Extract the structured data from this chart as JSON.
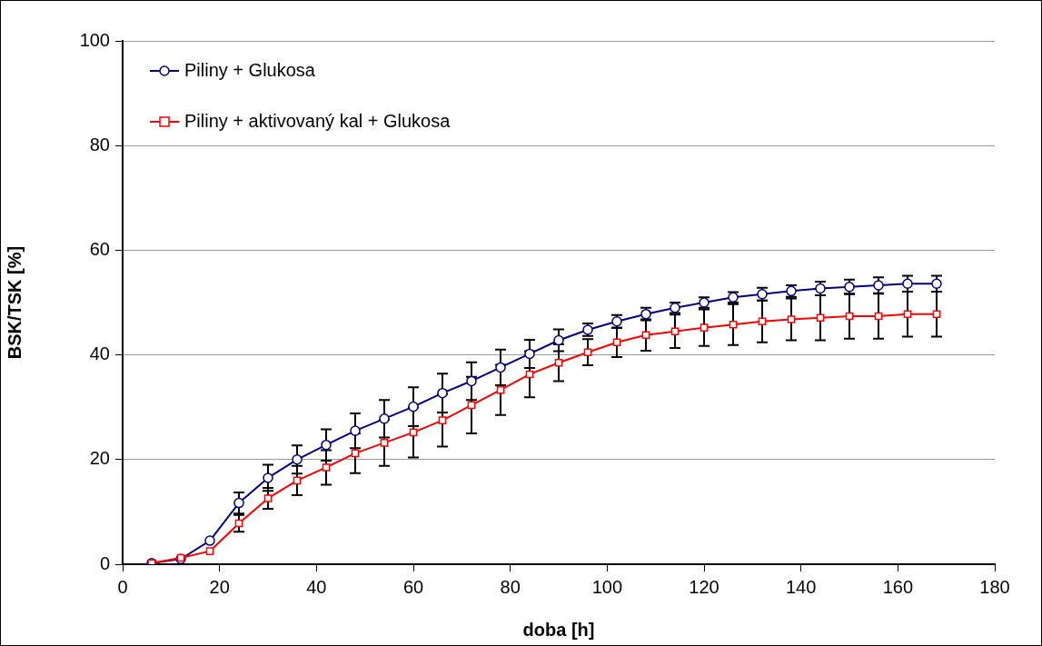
{
  "chart_data": {
    "type": "line",
    "xlabel": "doba [h]",
    "ylabel": "BSK/TSK [%]",
    "x": [
      6,
      12,
      18,
      24,
      30,
      36,
      42,
      48,
      54,
      60,
      66,
      72,
      78,
      84,
      90,
      96,
      102,
      108,
      114,
      120,
      126,
      132,
      138,
      144,
      150,
      156,
      162,
      168
    ],
    "xlim": [
      0,
      180
    ],
    "xticks": [
      0,
      20,
      40,
      60,
      80,
      100,
      120,
      140,
      160,
      180
    ],
    "ylim": [
      0,
      100
    ],
    "yticks": [
      0,
      20,
      40,
      60,
      80,
      100
    ],
    "grid": "y",
    "legend": "top left",
    "line_style": "solid",
    "series": [
      {
        "name": "Piliny + Glukosa",
        "color": "#000080",
        "marker": "circle",
        "values": [
          0.2,
          1.0,
          4.5,
          11.7,
          16.5,
          20,
          22.8,
          25.5,
          27.8,
          30.1,
          32.7,
          35,
          37.6,
          40.2,
          42.8,
          44.8,
          46.4,
          47.8,
          49,
          50,
          51,
          51.6,
          52.2,
          52.7,
          53,
          53.3,
          53.6,
          53.6
        ],
        "errors": [
          null,
          null,
          null,
          2,
          2.5,
          2.7,
          3,
          3.3,
          3.6,
          3.7,
          3.7,
          3.6,
          3.4,
          2.7,
          2.1,
          1.2,
          1.2,
          1.2,
          1,
          1,
          1,
          1.2,
          1.1,
          1.3,
          1.4,
          1.5,
          1.5,
          1.5
        ]
      },
      {
        "name": "Piliny + aktivovaný kal + Glukosa",
        "color": "#ff0000",
        "marker": "square",
        "values": [
          0.2,
          1.2,
          2.5,
          7.8,
          12.6,
          16,
          18.5,
          21.2,
          23.2,
          25.2,
          27.5,
          30.4,
          33.3,
          36.3,
          38.5,
          40.5,
          42.4,
          43.8,
          44.5,
          45.2,
          45.8,
          46.4,
          46.8,
          47.1,
          47.4,
          47.4,
          47.8,
          47.8
        ],
        "errors": [
          null,
          null,
          null,
          1.6,
          2,
          2.8,
          3.3,
          3.8,
          4.4,
          4.8,
          5,
          5.4,
          4.8,
          4.4,
          3.5,
          2.5,
          2.8,
          3,
          3.2,
          3.5,
          3.9,
          4,
          4,
          4.3,
          4.3,
          4.3,
          4.3,
          4.3
        ]
      }
    ]
  }
}
